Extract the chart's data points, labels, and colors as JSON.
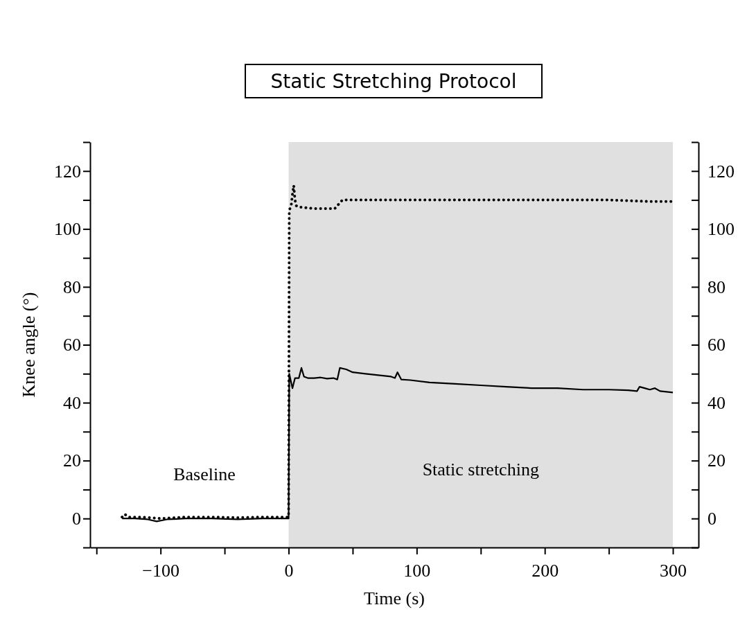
{
  "chart_data": {
    "type": "line",
    "title": "Static Stretching Protocol",
    "xlabel": "Time (s)",
    "ylabel": "Knee angle (°)",
    "xlim": [
      -155,
      320
    ],
    "xticks": [
      {
        "value": -150,
        "label": null
      },
      -100,
      {
        "value": -50,
        "label": null
      },
      0,
      {
        "value": 50,
        "label": null
      },
      100,
      {
        "value": 150,
        "label": null
      },
      200,
      {
        "value": 250,
        "label": null
      },
      300
    ],
    "ylim": [
      -10,
      130
    ],
    "yticks": [
      {
        "value": -10,
        "label": null
      },
      0,
      {
        "value": 10,
        "label": null
      },
      20,
      {
        "value": 30,
        "label": null
      },
      40,
      {
        "value": 50,
        "label": null
      },
      60,
      {
        "value": 70,
        "label": null
      },
      80,
      {
        "value": 90,
        "label": null
      },
      100,
      {
        "value": 110,
        "label": null
      },
      120,
      {
        "value": 130,
        "label": null
      }
    ],
    "y2lim": [
      -10,
      130
    ],
    "y2ticks": [
      {
        "value": -10,
        "label": null
      },
      0,
      {
        "value": 10,
        "label": null
      },
      20,
      {
        "value": 30,
        "label": null
      },
      40,
      {
        "value": 50,
        "label": null
      },
      60,
      {
        "value": 70,
        "label": null
      },
      80,
      {
        "value": 90,
        "label": null
      },
      100,
      {
        "value": 110,
        "label": null
      },
      120,
      {
        "value": 130,
        "label": null
      }
    ],
    "grid": false,
    "marker": "none",
    "bands": [
      {
        "axis": "x",
        "from": 0,
        "to": 300,
        "label": "Static stretching",
        "color": "#e0e0e0"
      }
    ],
    "annotations": [
      "Baseline"
    ],
    "series": [
      {
        "color": "#000000",
        "line_style": "solid",
        "x": [
          -130,
          -120,
          -110,
          -103,
          -95,
          -80,
          -60,
          -40,
          -20,
          -10,
          0,
          0.5,
          1,
          3,
          5,
          8,
          10,
          12,
          15,
          20,
          25,
          30,
          35,
          38,
          40,
          45,
          50,
          60,
          70,
          80,
          83,
          85,
          88,
          95,
          110,
          130,
          150,
          170,
          190,
          210,
          230,
          250,
          265,
          272,
          274,
          278,
          282,
          286,
          290,
          300
        ],
        "values": [
          0,
          0,
          -0.3,
          -1,
          -0.3,
          0,
          0,
          -0.3,
          0,
          0,
          0,
          50,
          49,
          45,
          48.5,
          48.5,
          52,
          49,
          48.5,
          48.5,
          48.7,
          48.3,
          48.5,
          48,
          52,
          51.5,
          50.5,
          50,
          49.5,
          49,
          48.5,
          50.5,
          48,
          47.8,
          47,
          46.5,
          46,
          45.5,
          45,
          45,
          44.5,
          44.5,
          44.3,
          44,
          45.5,
          45,
          44.5,
          45,
          44,
          43.5
        ]
      },
      {
        "color": "#000000",
        "line_style": "dotted",
        "x": [
          -130,
          -128,
          -125,
          -115,
          -100,
          -80,
          -60,
          -40,
          -20,
          0,
          0.5,
          1,
          2,
          3,
          4,
          5,
          6,
          8,
          10,
          20,
          30,
          36,
          40,
          42,
          60,
          100,
          150,
          200,
          250,
          280,
          300
        ],
        "values": [
          0.5,
          1.5,
          0.5,
          0.5,
          0,
          0.5,
          0.5,
          0.3,
          0.5,
          0.5,
          106,
          107,
          108,
          112,
          115,
          110,
          108,
          107.5,
          107.5,
          107,
          107,
          107,
          109,
          110,
          110,
          110,
          110,
          110,
          110,
          109.5,
          109.5
        ]
      }
    ]
  }
}
